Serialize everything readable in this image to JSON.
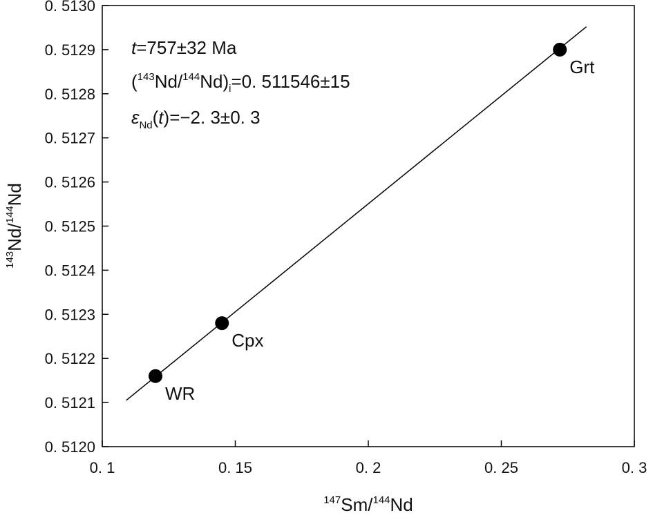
{
  "chart_data": {
    "type": "scatter",
    "x": [
      0.12,
      0.145,
      0.272
    ],
    "y": [
      0.51216,
      0.51228,
      0.5129
    ],
    "point_labels": [
      "WR",
      "Cpx",
      "Grt"
    ],
    "regression_line": {
      "x": [
        0.109,
        0.282
      ],
      "y": [
        0.512105,
        0.512952
      ]
    },
    "xlim": [
      0.1,
      0.3
    ],
    "ylim": [
      0.512,
      0.513
    ],
    "x_tick_values": [
      0.1,
      0.15,
      0.2,
      0.25,
      0.3
    ],
    "x_tick_labels": [
      "0. 1",
      "0. 15",
      "0. 2",
      "0. 25",
      "0. 3"
    ],
    "y_tick_values": [
      0.512,
      0.5121,
      0.5122,
      0.5123,
      0.5124,
      0.5125,
      0.5126,
      0.5127,
      0.5128,
      0.5129,
      0.513
    ],
    "y_tick_labels": [
      "0. 5120",
      "0. 5121",
      "0. 5122",
      "0. 5123",
      "0. 5124",
      "0. 5125",
      "0. 5126",
      "0. 5127",
      "0. 5128",
      "0. 5129",
      "0. 5130"
    ],
    "xlabel": {
      "sup1": "147",
      "main1": "Sm/",
      "sup2": "144",
      "main2": "Nd"
    },
    "ylabel": {
      "sup1": "143",
      "main1": "Nd/",
      "sup2": "144",
      "main2": "Nd"
    },
    "annotations": {
      "age": {
        "var": "t",
        "text": "=757±32 Ma"
      },
      "initial": {
        "open": "(",
        "sup1": "143",
        "mid": "Nd/",
        "sup2": "144",
        "close": "Nd)",
        "sub": "i",
        "text": "=0. 511546±15"
      },
      "epsilon": {
        "sym": "ε",
        "sub": "Nd",
        "paren_open": "(",
        "var": "t",
        "text": ")=−2. 3±0. 3"
      }
    },
    "grid": false,
    "legend": "none",
    "marker_color": "#000000",
    "line_color": "#000000"
  }
}
